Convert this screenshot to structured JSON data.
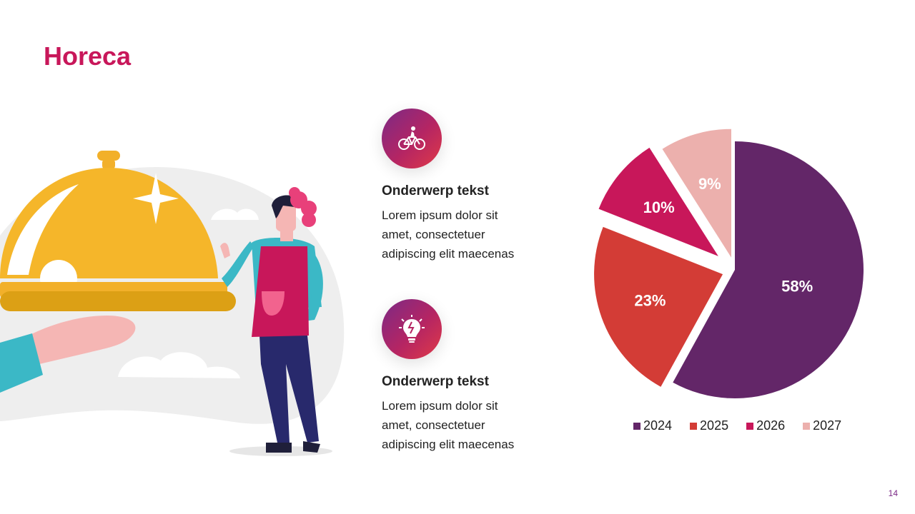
{
  "slide": {
    "title": "Horeca",
    "page_number": "14"
  },
  "items": [
    {
      "icon": "cyclist-icon",
      "title": "Onderwerp tekst",
      "lines": [
        "Lorem ipsum dolor sit",
        "amet, consectetuer",
        "adipiscing elit maecenas"
      ]
    },
    {
      "icon": "lightbulb-brain-icon",
      "title": "Onderwerp tekst",
      "lines": [
        "Lorem ipsum dolor sit",
        "amet, consectetuer",
        "adipiscing elit maecenas"
      ]
    }
  ],
  "colors": {
    "accent": "#c8175a",
    "series": [
      "#632668",
      "#d33c36",
      "#c8175a",
      "#ecb0ad"
    ]
  },
  "chart_data": {
    "type": "pie",
    "categories": [
      "2024",
      "2025",
      "2026",
      "2027"
    ],
    "values": [
      58,
      23,
      10,
      9
    ],
    "data_labels": [
      "58%",
      "23%",
      "10%",
      "9%"
    ],
    "exploded": true,
    "legend_position": "bottom"
  }
}
